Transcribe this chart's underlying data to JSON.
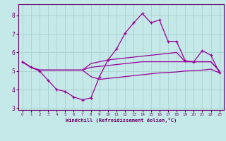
{
  "xlabel": "Windchill (Refroidissement éolien,°C)",
  "bg_color": "#c5e8e8",
  "grid_color": "#aed4d4",
  "line_color": "#990099",
  "axis_color": "#660066",
  "xlim": [
    -0.5,
    23.5
  ],
  "ylim": [
    2.9,
    8.6
  ],
  "yticks": [
    3,
    4,
    5,
    6,
    7,
    8
  ],
  "xticks": [
    0,
    1,
    2,
    3,
    4,
    5,
    6,
    7,
    8,
    9,
    10,
    11,
    12,
    13,
    14,
    15,
    16,
    17,
    18,
    19,
    20,
    21,
    22,
    23
  ],
  "line1_x": [
    0,
    1,
    2,
    3,
    4,
    5,
    6,
    7,
    8,
    9,
    10,
    11,
    12,
    13,
    14,
    15,
    16,
    17,
    18,
    19,
    20,
    21,
    22,
    23
  ],
  "line1_y": [
    5.5,
    5.2,
    5.0,
    4.5,
    4.0,
    3.9,
    3.6,
    3.45,
    3.55,
    4.7,
    5.6,
    6.2,
    7.05,
    7.6,
    8.1,
    7.6,
    7.75,
    6.6,
    6.6,
    5.55,
    5.5,
    6.1,
    5.85,
    4.9
  ],
  "line2_x": [
    0,
    1,
    2,
    3,
    4,
    5,
    6,
    7,
    8,
    9,
    10,
    11,
    12,
    13,
    14,
    15,
    16,
    17,
    18,
    19,
    20,
    21,
    22,
    23
  ],
  "line2_y": [
    5.5,
    5.2,
    5.05,
    5.05,
    5.05,
    5.05,
    5.05,
    5.05,
    5.4,
    5.5,
    5.6,
    5.65,
    5.7,
    5.75,
    5.8,
    5.85,
    5.9,
    5.95,
    6.0,
    5.5,
    5.5,
    5.5,
    5.5,
    5.0
  ],
  "line3_x": [
    0,
    1,
    2,
    3,
    4,
    5,
    6,
    7,
    8,
    9,
    10,
    11,
    12,
    13,
    14,
    15,
    16,
    17,
    18,
    19,
    20,
    21,
    22,
    23
  ],
  "line3_y": [
    5.5,
    5.2,
    5.05,
    5.05,
    5.05,
    5.05,
    5.05,
    5.05,
    5.2,
    5.25,
    5.3,
    5.35,
    5.4,
    5.45,
    5.5,
    5.5,
    5.5,
    5.5,
    5.5,
    5.5,
    5.5,
    5.5,
    5.5,
    5.0
  ],
  "line4_x": [
    0,
    1,
    2,
    3,
    4,
    5,
    6,
    7,
    8,
    9,
    10,
    11,
    12,
    13,
    14,
    15,
    16,
    17,
    18,
    19,
    20,
    21,
    22,
    23
  ],
  "line4_y": [
    5.5,
    5.2,
    5.05,
    5.05,
    5.05,
    5.05,
    5.05,
    5.05,
    4.7,
    4.55,
    4.6,
    4.65,
    4.7,
    4.75,
    4.8,
    4.85,
    4.9,
    4.92,
    4.95,
    5.0,
    5.02,
    5.05,
    5.1,
    4.9
  ]
}
